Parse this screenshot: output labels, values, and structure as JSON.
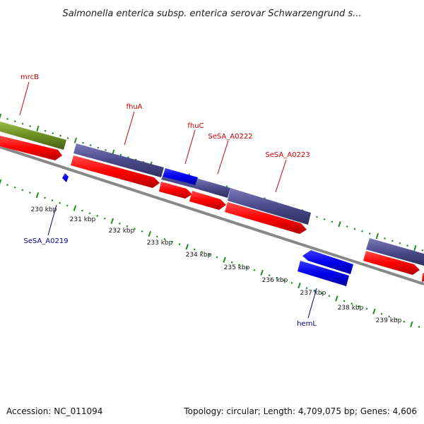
{
  "title": "Salmonella enterica subsp. enterica serovar Schwarzengrund s...",
  "footer": {
    "accession": "Accession: NC_011094",
    "summary": "Topology: circular; Length: 4,709,075 bp; Genes: 4,606"
  },
  "colors": {
    "backbone": "#888888",
    "red_cds": "#ff0000",
    "blue_cds": "#0000ee",
    "purple_cds": "#4b4a8c",
    "olive_cds": "#6b8e23",
    "tick_green": "#228b22",
    "label_red": "#cc0000",
    "label_blue": "#00008b"
  },
  "gene_labels": [
    {
      "id": "mrcB",
      "text": "mrcB",
      "color": "red"
    },
    {
      "id": "fhuA",
      "text": "fhuA",
      "color": "red"
    },
    {
      "id": "fhuC",
      "text": "fhuC",
      "color": "red"
    },
    {
      "id": "SeSA_A0222",
      "text": "SeSA_A0222",
      "color": "red"
    },
    {
      "id": "SeSA_A0223",
      "text": "SeSA_A0223",
      "color": "red"
    },
    {
      "id": "SeSA_A0219",
      "text": "SeSA_A0219",
      "color": "blue"
    },
    {
      "id": "hemL",
      "text": "hemL",
      "color": "blue"
    }
  ],
  "position_ticks": [
    "230 kbp",
    "231 kbp",
    "232 kbp",
    "233 kbp",
    "234 kbp",
    "235 kbp",
    "236 kbp",
    "237 kbp",
    "238 kbp",
    "239 kbp"
  ]
}
